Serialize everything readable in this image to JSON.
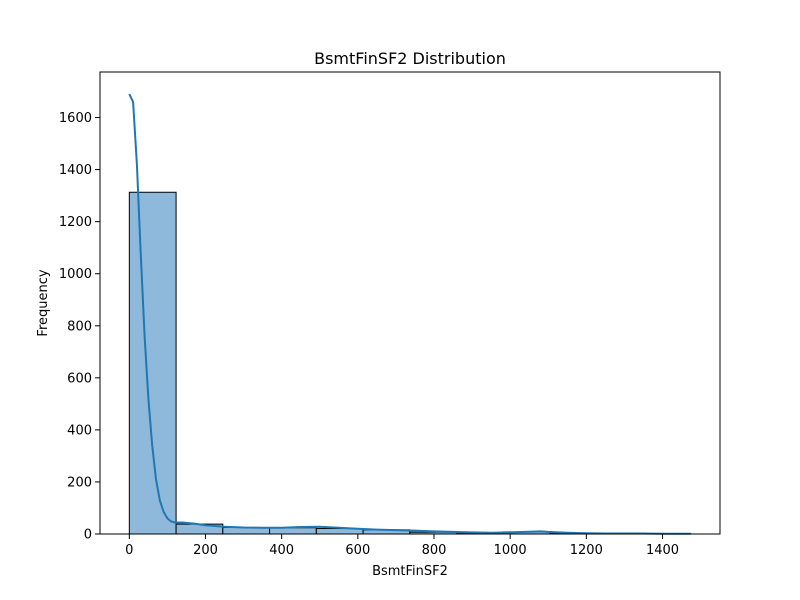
{
  "chart_data": {
    "type": "bar",
    "title": "BsmtFinSF2 Distribution",
    "xlabel": "BsmtFinSF2",
    "ylabel": "Frequency",
    "xlim": [
      -77,
      1551
    ],
    "ylim": [
      0,
      1775
    ],
    "x_ticks": [
      0,
      200,
      400,
      600,
      800,
      1000,
      1200,
      1400
    ],
    "y_ticks": [
      0,
      200,
      400,
      600,
      800,
      1000,
      1200,
      1400,
      1600
    ],
    "bins": [
      {
        "x0": 0,
        "x1": 122.8,
        "count": 1313
      },
      {
        "x0": 122.8,
        "x1": 245.5,
        "count": 38
      },
      {
        "x0": 245.5,
        "x1": 368.3,
        "count": 25
      },
      {
        "x0": 368.3,
        "x1": 491,
        "count": 24
      },
      {
        "x0": 491,
        "x1": 613.8,
        "count": 21
      },
      {
        "x0": 613.8,
        "x1": 736.5,
        "count": 16
      },
      {
        "x0": 736.5,
        "x1": 859.3,
        "count": 7
      },
      {
        "x0": 859.3,
        "x1": 982,
        "count": 4
      },
      {
        "x0": 982,
        "x1": 1104.8,
        "count": 8
      },
      {
        "x0": 1104.8,
        "x1": 1227.5,
        "count": 2
      },
      {
        "x0": 1227.5,
        "x1": 1350.3,
        "count": 1
      },
      {
        "x0": 1350.3,
        "x1": 1474,
        "count": 1
      }
    ],
    "kde": {
      "x": [
        0,
        10,
        20,
        30,
        40,
        50,
        60,
        70,
        80,
        90,
        100,
        110,
        120,
        140,
        170,
        200,
        250,
        300,
        350,
        400,
        450,
        500,
        550,
        600,
        650,
        700,
        750,
        800,
        850,
        900,
        950,
        1000,
        1050,
        1080,
        1100,
        1150,
        1200,
        1250,
        1300,
        1350,
        1400,
        1474
      ],
      "y": [
        1690,
        1660,
        1420,
        1080,
        760,
        520,
        340,
        210,
        130,
        85,
        60,
        48,
        44,
        44,
        40,
        34,
        28,
        25,
        24,
        24,
        27,
        28,
        24,
        20,
        17,
        15,
        13,
        10,
        8,
        6,
        5,
        6,
        9,
        10,
        8,
        5,
        3,
        2,
        2,
        2,
        1,
        1
      ]
    },
    "bar_fill": "#8fb9da",
    "bar_edge": "#000000",
    "line_color": "#1f77b4",
    "grid": false
  }
}
